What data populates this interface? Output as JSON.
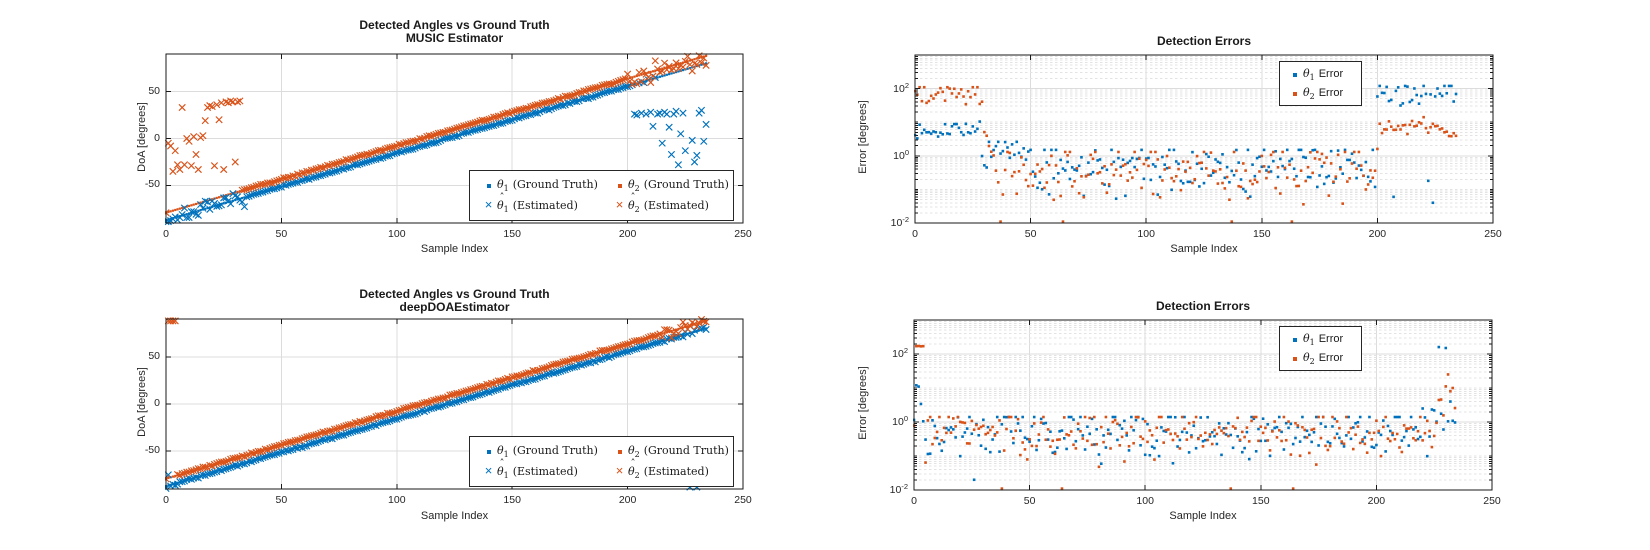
{
  "figure": {
    "background": "#ffffff",
    "blue": "#0072BD",
    "orange": "#D95319",
    "axis_color": "#1a1a1a",
    "grid_major": "#dcdcdc",
    "grid_minor": "#e3e3e3",
    "text_color": "#262626"
  },
  "chart_data": [
    {
      "id": "music-angles",
      "type": "scatter",
      "kind": "angles",
      "title_line1": "Detected Angles vs Ground Truth",
      "title_line2": "MUSIC Estimator",
      "xlabel": "Sample Index",
      "ylabel": "DoA [degrees]",
      "xlim": [
        0,
        250
      ],
      "ylim": [
        -90,
        90
      ],
      "xticks": [
        0,
        50,
        100,
        150,
        200,
        250
      ],
      "yticks": [
        50,
        0,
        -50
      ],
      "n_samples": 235,
      "seed": 7,
      "series": [
        {
          "name": "theta1_ground_truth",
          "marker": "dot",
          "color": "blue",
          "ramp": {
            "y0": -87,
            "y1": 80
          }
        },
        {
          "name": "theta2_ground_truth",
          "marker": "dot",
          "color": "orange",
          "ramp": {
            "y0": -79,
            "y1": 88
          }
        },
        {
          "name": "theta1_estimated",
          "marker": "x",
          "color": "blue",
          "follows": 0,
          "noise_sd": 0.5,
          "noise_segments": [
            {
              "i0": 0,
              "i1": 34,
              "sd": 3.5
            }
          ],
          "outliers": [
            [
              203,
              26
            ],
            [
              204,
              25
            ],
            [
              206,
              27
            ],
            [
              208,
              26
            ],
            [
              210,
              28
            ],
            [
              211,
              13
            ],
            [
              213,
              26
            ],
            [
              214,
              27
            ],
            [
              215,
              -5
            ],
            [
              216,
              28
            ],
            [
              217,
              26
            ],
            [
              218,
              12
            ],
            [
              219,
              -17
            ],
            [
              220,
              26
            ],
            [
              221,
              29
            ],
            [
              222,
              -28
            ],
            [
              223,
              5
            ],
            [
              224,
              27
            ],
            [
              225,
              -13
            ],
            [
              226,
              -43
            ],
            [
              227,
              -44
            ],
            [
              228,
              -2
            ],
            [
              229,
              -25
            ],
            [
              230,
              -18
            ],
            [
              231,
              27
            ],
            [
              232,
              30
            ],
            [
              233,
              -3
            ],
            [
              234,
              15
            ]
          ]
        },
        {
          "name": "theta2_estimated",
          "marker": "x",
          "color": "orange",
          "follows": 1,
          "noise_sd": 0.5,
          "noise_segments": [
            {
              "i0": 200,
              "i1": 234,
              "sd": 6
            }
          ],
          "outliers": [
            [
              1,
              -5
            ],
            [
              2,
              -8
            ],
            [
              3,
              -35
            ],
            [
              4,
              -13
            ],
            [
              5,
              -28
            ],
            [
              6,
              -33
            ],
            [
              7,
              33
            ],
            [
              8,
              -28
            ],
            [
              9,
              0
            ],
            [
              10,
              -3
            ],
            [
              11,
              -29
            ],
            [
              12,
              2
            ],
            [
              13,
              -17
            ],
            [
              14,
              -33
            ],
            [
              15,
              1
            ],
            [
              16,
              3
            ],
            [
              17,
              19
            ],
            [
              18,
              33
            ],
            [
              19,
              35
            ],
            [
              20,
              34
            ],
            [
              21,
              -29
            ],
            [
              22,
              36
            ],
            [
              23,
              20
            ],
            [
              24,
              38
            ],
            [
              25,
              -33
            ],
            [
              26,
              39
            ],
            [
              27,
              38
            ],
            [
              28,
              40
            ],
            [
              29,
              39
            ],
            [
              30,
              -25
            ],
            [
              31,
              39
            ],
            [
              32,
              40
            ]
          ]
        }
      ],
      "legend": {
        "entries": [
          {
            "marker": "dot",
            "color": "blue",
            "sym": "θ",
            "hat": false,
            "sub": "1",
            "rest": "(Ground Truth)"
          },
          {
            "marker": "x",
            "color": "blue",
            "sym": "θ",
            "hat": true,
            "sub": "1",
            "rest": "(Estimated)"
          },
          {
            "marker": "dot",
            "color": "orange",
            "sym": "θ",
            "hat": false,
            "sub": "2",
            "rest": "(Ground Truth)"
          },
          {
            "marker": "x",
            "color": "orange",
            "sym": "θ",
            "hat": true,
            "sub": "2",
            "rest": "(Estimated)"
          }
        ]
      }
    },
    {
      "id": "music-errors",
      "type": "scatter",
      "kind": "errors",
      "title": "Detection Errors",
      "xlabel": "Sample Index",
      "ylabel": "Error [degrees]",
      "xlim": [
        0,
        250
      ],
      "ylim_log": [
        -2,
        3
      ],
      "xticks": [
        0,
        50,
        100,
        150,
        200,
        250
      ],
      "ytick_exponents": [
        2,
        0,
        -2
      ],
      "n_samples": 235,
      "seed": 13,
      "series": [
        {
          "name": "theta1_error",
          "color": "blue",
          "segments": [
            {
              "i0": 0,
              "i1": 28,
              "mu": 0.78,
              "sd": 0.1
            },
            {
              "i0": 29,
              "i1": 49,
              "mu": 0.12,
              "sd": 0.26,
              "cap": 2.6
            },
            {
              "i0": 50,
              "i1": 199,
              "mu": -0.35,
              "sd": 0.4,
              "cap": 1.5
            },
            {
              "i0": 200,
              "i1": 234,
              "mu": 1.85,
              "sd": 0.22,
              "cap": 120
            }
          ],
          "overrides": [
            [
              207,
              0.06
            ],
            [
              222,
              0.18
            ],
            [
              224,
              0.04
            ]
          ]
        },
        {
          "name": "theta2_error",
          "color": "orange",
          "segments": [
            {
              "i0": 0,
              "i1": 29,
              "mu": 1.88,
              "sd": 0.13,
              "cap": 110
            },
            {
              "i0": 30,
              "i1": 33,
              "mu": 0.3,
              "sd": 0.15
            },
            {
              "i0": 34,
              "i1": 199,
              "mu": -0.42,
              "sd": 0.42,
              "cap": 1.3
            },
            {
              "i0": 200,
              "i1": 234,
              "mu": 0.83,
              "sd": 0.14
            }
          ],
          "overrides": [
            [
              37,
              0.011
            ],
            [
              64,
              0.011
            ],
            [
              137,
              0.011
            ],
            [
              163,
              0.011
            ],
            [
              200,
              1.6
            ],
            [
              201,
              9
            ]
          ]
        }
      ],
      "legend": {
        "entries": [
          {
            "marker": "dot",
            "color": "blue",
            "sym": "θ",
            "hat": false,
            "sub": "1",
            "rest": "Error"
          },
          {
            "marker": "dot",
            "color": "orange",
            "sym": "θ",
            "hat": false,
            "sub": "2",
            "rest": "Error"
          }
        ]
      }
    },
    {
      "id": "deep-angles",
      "type": "scatter",
      "kind": "angles",
      "title_line1": "Detected Angles vs Ground Truth",
      "title_line2": "deepDOAEstimator",
      "xlabel": "Sample Index",
      "ylabel": "DoA [degrees]",
      "xlim": [
        0,
        250
      ],
      "ylim": [
        -90,
        90
      ],
      "xticks": [
        0,
        50,
        100,
        150,
        200,
        250
      ],
      "yticks": [
        50,
        0,
        -50
      ],
      "n_samples": 235,
      "seed": 21,
      "series": [
        {
          "name": "theta1_ground_truth",
          "marker": "dot",
          "color": "blue",
          "ramp": {
            "y0": -87,
            "y1": 80
          }
        },
        {
          "name": "theta2_ground_truth",
          "marker": "dot",
          "color": "orange",
          "ramp": {
            "y0": -79,
            "y1": 88
          }
        },
        {
          "name": "theta1_estimated",
          "marker": "x",
          "color": "blue",
          "follows": 0,
          "noise_sd": 0.5,
          "noise_segments": [
            {
              "i0": 0,
              "i1": 5,
              "sd": 3
            },
            {
              "i0": 220,
              "i1": 234,
              "sd": 1.5
            }
          ],
          "outliers": [
            [
              1,
              -75
            ],
            [
              227,
              -88
            ],
            [
              230,
              -88
            ]
          ]
        },
        {
          "name": "theta2_estimated",
          "marker": "x",
          "color": "orange",
          "follows": 1,
          "noise_sd": 0.5,
          "noise_segments": [
            {
              "i0": 215,
              "i1": 234,
              "sd": 2.5
            }
          ],
          "outliers": [
            [
              1,
              88
            ],
            [
              2,
              88
            ],
            [
              3,
              88
            ],
            [
              4,
              88
            ],
            [
              219,
              70
            ]
          ]
        }
      ],
      "legend": {
        "entries": [
          {
            "marker": "dot",
            "color": "blue",
            "sym": "θ",
            "hat": false,
            "sub": "1",
            "rest": "(Ground Truth)"
          },
          {
            "marker": "x",
            "color": "blue",
            "sym": "θ",
            "hat": true,
            "sub": "1",
            "rest": "(Estimated)"
          },
          {
            "marker": "dot",
            "color": "orange",
            "sym": "θ",
            "hat": false,
            "sub": "2",
            "rest": "(Ground Truth)"
          },
          {
            "marker": "x",
            "color": "orange",
            "sym": "θ",
            "hat": true,
            "sub": "2",
            "rest": "(Estimated)"
          }
        ]
      }
    },
    {
      "id": "deep-errors",
      "type": "scatter",
      "kind": "errors",
      "title": "Detection Errors",
      "xlabel": "Sample Index",
      "ylabel": "Error [degrees]",
      "xlim": [
        0,
        250
      ],
      "ylim_log": [
        -2,
        3
      ],
      "xticks": [
        0,
        50,
        100,
        150,
        200,
        250
      ],
      "ytick_exponents": [
        2,
        0,
        -2
      ],
      "n_samples": 235,
      "seed": 29,
      "series": [
        {
          "name": "theta1_error",
          "color": "blue",
          "segments": [
            {
              "i0": 0,
              "i1": 219,
              "mu": -0.32,
              "sd": 0.38,
              "cap": 1.4
            },
            {
              "i0": 220,
              "i1": 234,
              "mu": -0.05,
              "sd": 0.35,
              "cap": 2.5
            }
          ],
          "overrides": [
            [
              0,
              1.15
            ],
            [
              1,
              12
            ],
            [
              2,
              11
            ],
            [
              3,
              3.4
            ],
            [
              26,
              0.02
            ],
            [
              225,
              2.2
            ],
            [
              227,
              160
            ],
            [
              230,
              150
            ],
            [
              232,
              4
            ]
          ]
        },
        {
          "name": "theta2_error",
          "color": "orange",
          "segments": [
            {
              "i0": 0,
              "i1": 225,
              "mu": -0.32,
              "sd": 0.38,
              "cap": 1.4
            },
            {
              "i0": 226,
              "i1": 234,
              "mu": 0.35,
              "sd": 0.4
            }
          ],
          "overrides": [
            [
              1,
              170
            ],
            [
              2,
              172
            ],
            [
              3,
              168
            ],
            [
              4,
              170
            ],
            [
              38,
              0.011
            ],
            [
              64,
              0.011
            ],
            [
              137,
              0.011
            ],
            [
              164,
              0.011
            ],
            [
              233,
              10
            ]
          ]
        }
      ],
      "legend": {
        "entries": [
          {
            "marker": "dot",
            "color": "blue",
            "sym": "θ",
            "hat": false,
            "sub": "1",
            "rest": "Error"
          },
          {
            "marker": "dot",
            "color": "orange",
            "sym": "θ",
            "hat": false,
            "sub": "2",
            "rest": "Error"
          }
        ]
      }
    }
  ]
}
